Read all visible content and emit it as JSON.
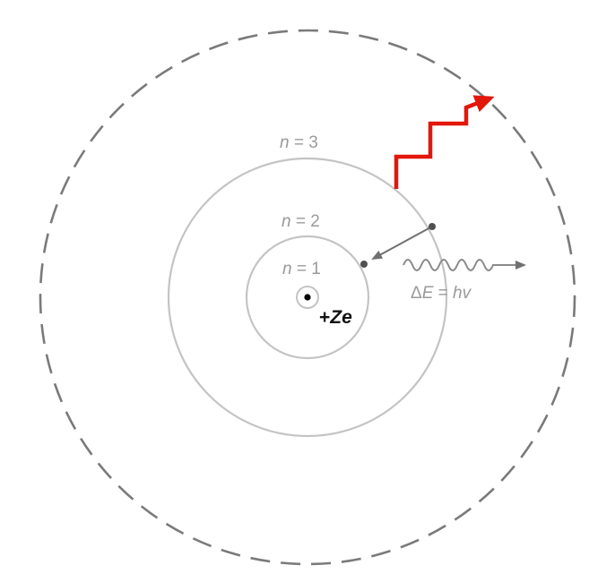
{
  "diagram": {
    "orbits": [
      {
        "n_prefix": "n",
        "eq": " = 1"
      },
      {
        "n_prefix": "n",
        "eq": " = 2"
      },
      {
        "n_prefix": "n",
        "eq": " = 3"
      }
    ],
    "nucleus": {
      "sign": "+",
      "charge": "Ze"
    },
    "photon": {
      "delta": "Δ",
      "var_e": "E",
      "equals": " = ",
      "h": "h",
      "nu": "v"
    },
    "colors": {
      "orbit": "#c4c4c4",
      "outer_orbit": "#7a7a7a",
      "arrow": "#707070",
      "ionization_path": "#e3160b",
      "nucleus": "#000000"
    },
    "icons": {
      "photon": "wavy-arrow-icon",
      "ionization": "zigzag-arrow-icon",
      "transition": "straight-arrow-icon"
    }
  }
}
